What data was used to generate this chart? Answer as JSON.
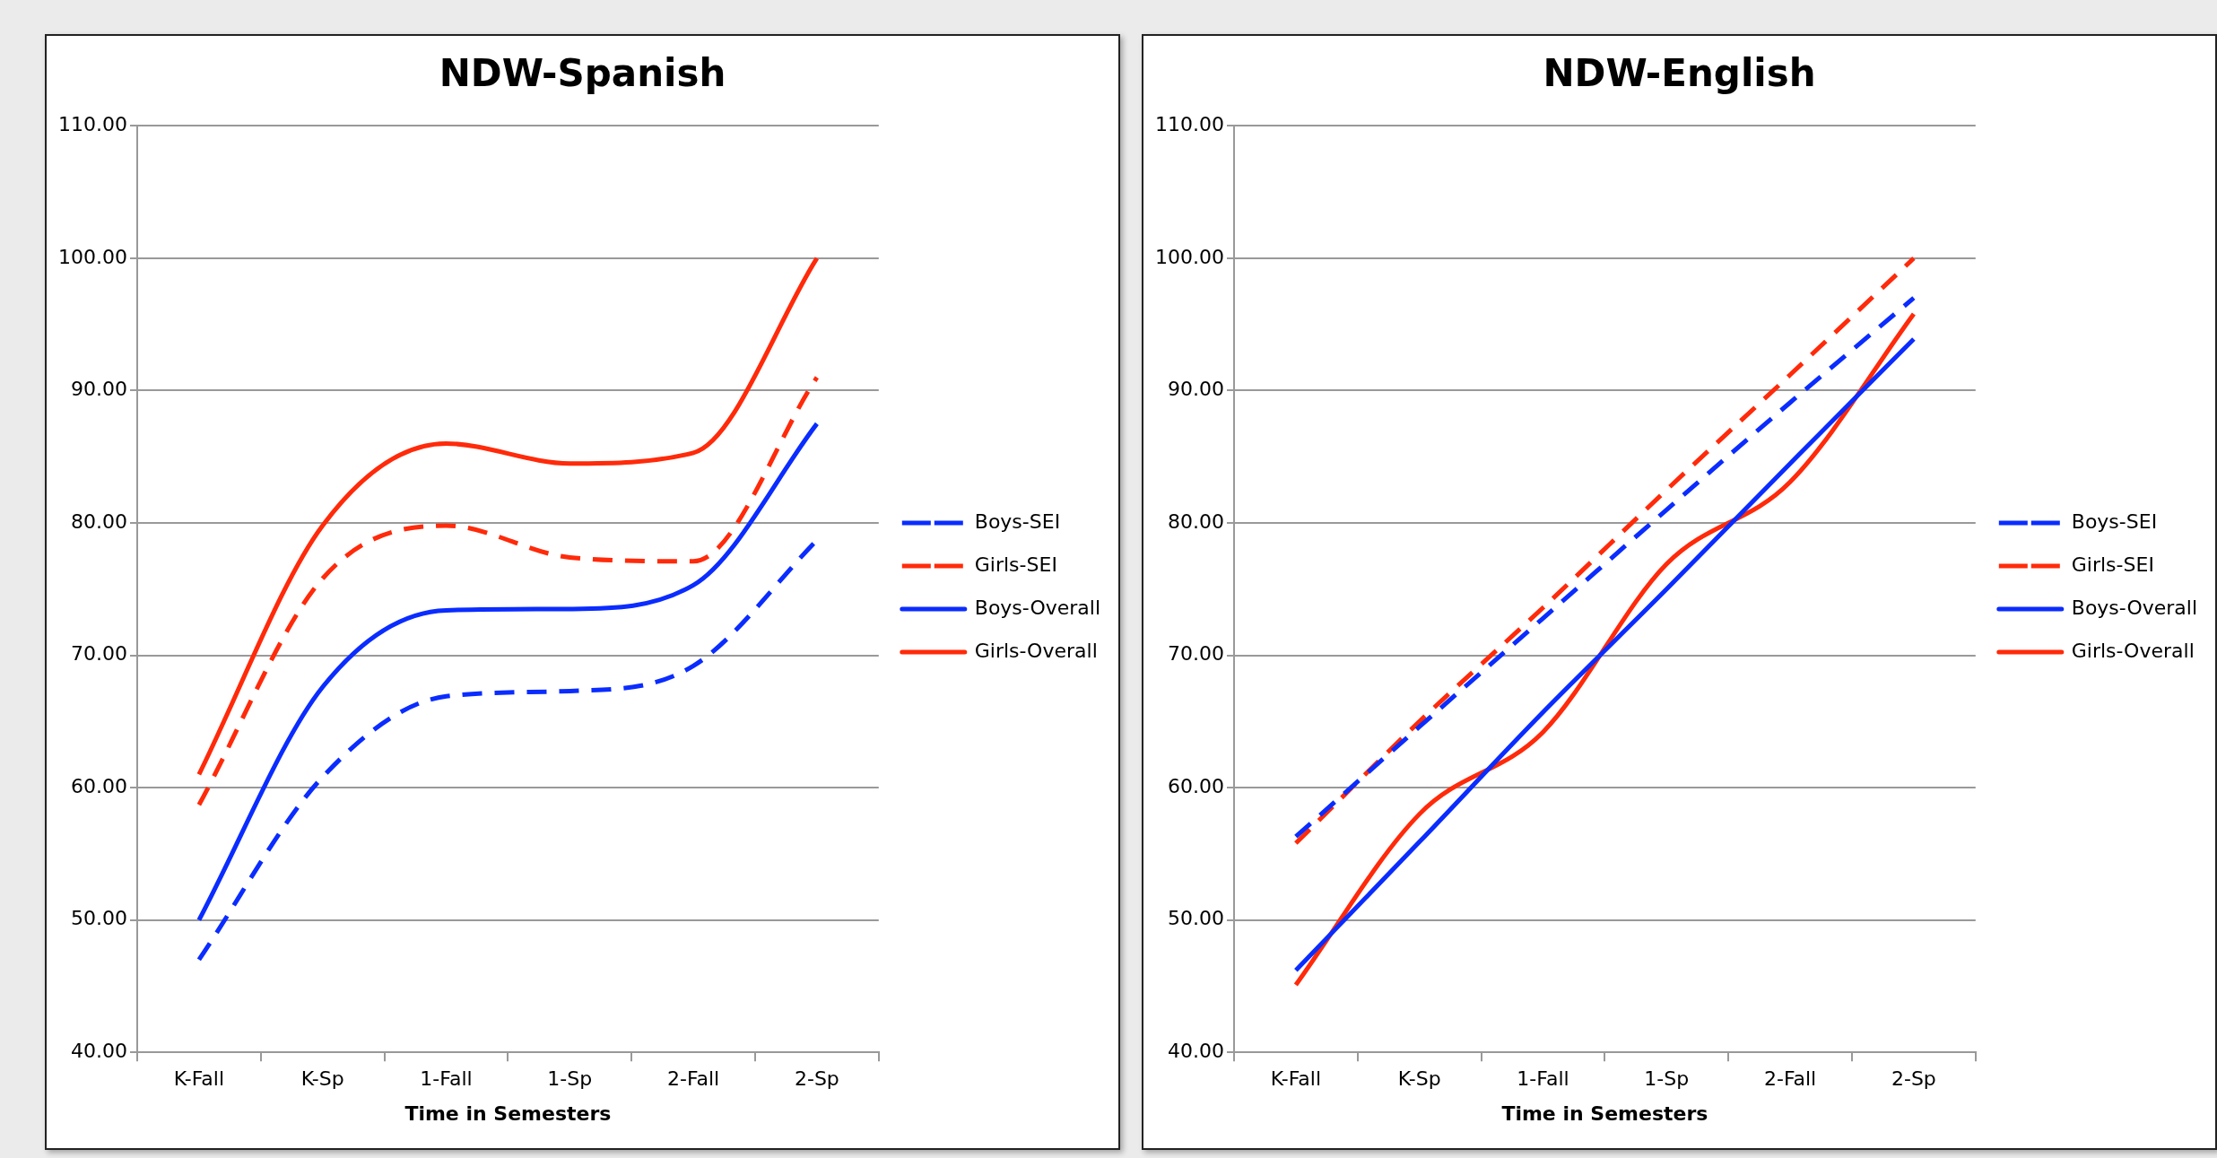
{
  "chart_data": [
    {
      "type": "line",
      "title": "NDW-Spanish",
      "xlabel": "Time in Semesters",
      "categories": [
        "K-Fall",
        "K-Sp",
        "1-Fall",
        "1-Sp",
        "2-Fall",
        "2-Sp"
      ],
      "series": [
        {
          "name": "Boys-SEI",
          "color": "#0a2cff",
          "line_style": "dashed",
          "values": [
            47.0,
            60.8,
            66.9,
            67.3,
            69.2,
            78.7
          ]
        },
        {
          "name": "Girls-SEI",
          "color": "#ff2a0a",
          "line_style": "dashed",
          "values": [
            58.7,
            75.8,
            79.8,
            77.4,
            77.1,
            91.0
          ]
        },
        {
          "name": "Boys-Overall",
          "color": "#0a2cff",
          "line_style": "solid",
          "values": [
            50.0,
            67.6,
            73.4,
            73.5,
            75.3,
            87.5
          ]
        },
        {
          "name": "Girls-Overall",
          "color": "#ff2a0a",
          "line_style": "solid",
          "values": [
            61.0,
            79.8,
            86.0,
            84.5,
            85.3,
            100.0
          ]
        }
      ],
      "ylim": [
        40,
        110
      ],
      "yticks": [
        {
          "value": 40,
          "label": "40.00"
        },
        {
          "value": 50,
          "label": "50.00"
        },
        {
          "value": 60,
          "label": "60.00"
        },
        {
          "value": 70,
          "label": "70.00"
        },
        {
          "value": 80,
          "label": "80.00"
        },
        {
          "value": 90,
          "label": "90.00"
        },
        {
          "value": 100,
          "label": "100.00"
        },
        {
          "value": 110,
          "label": "110.00"
        }
      ],
      "grid": "y",
      "legend": "right",
      "marker": "none"
    },
    {
      "type": "line",
      "title": "NDW-English",
      "xlabel": "Time in Semesters",
      "categories": [
        "K-Fall",
        "K-Sp",
        "1-Fall",
        "1-Sp",
        "2-Fall",
        "2-Sp"
      ],
      "series": [
        {
          "name": "Boys-SEI",
          "color": "#0a2cff",
          "line_style": "dashed",
          "values": [
            56.3,
            64.6,
            72.8,
            81.0,
            89.1,
            97.0
          ]
        },
        {
          "name": "Girls-SEI",
          "color": "#ff2a0a",
          "line_style": "dashed",
          "values": [
            55.8,
            65.0,
            73.6,
            82.5,
            91.2,
            100.0
          ]
        },
        {
          "name": "Boys-Overall",
          "color": "#0a2cff",
          "line_style": "solid",
          "values": [
            46.2,
            55.9,
            65.7,
            75.0,
            84.5,
            93.9
          ]
        },
        {
          "name": "Girls-Overall",
          "color": "#ff2a0a",
          "line_style": "solid",
          "values": [
            45.1,
            58.0,
            64.2,
            76.9,
            83.1,
            95.8
          ]
        }
      ],
      "ylim": [
        40,
        110
      ],
      "yticks": [
        {
          "value": 40,
          "label": "40.00"
        },
        {
          "value": 50,
          "label": "50.00"
        },
        {
          "value": 60,
          "label": "60.00"
        },
        {
          "value": 70,
          "label": "70.00"
        },
        {
          "value": 80,
          "label": "80.00"
        },
        {
          "value": 90,
          "label": "90.00"
        },
        {
          "value": 100,
          "label": "100.00"
        },
        {
          "value": 110,
          "label": "110.00"
        }
      ],
      "grid": "y",
      "legend": "right",
      "marker": "none"
    }
  ]
}
